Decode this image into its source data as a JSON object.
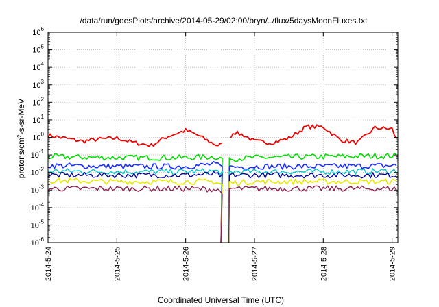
{
  "chart_data": {
    "type": "line",
    "title": "/data/run/goesPlots/archive/2014-05-29/02:00/bryn/../flux/5daysMoonFluxes.txt",
    "xlabel": "Coordinated Universal Time (UTC)",
    "ylabel": {
      "pre": "protons/cm",
      "sup": "2",
      "post": "-s-sr-MeV"
    },
    "scale_y": "log",
    "ylim": [
      1e-06,
      1000000.0
    ],
    "y_ticks": [
      {
        "value": 1e-06,
        "base": "10",
        "exp": "-6"
      },
      {
        "value": 1e-05,
        "base": "10",
        "exp": "-5"
      },
      {
        "value": 0.0001,
        "base": "10",
        "exp": "-4"
      },
      {
        "value": 0.001,
        "base": "10",
        "exp": "-3"
      },
      {
        "value": 0.01,
        "base": "10",
        "exp": "-2"
      },
      {
        "value": 0.1,
        "base": "10",
        "exp": "-1"
      },
      {
        "value": 1,
        "base": "10",
        "exp": "0"
      },
      {
        "value": 10,
        "base": "10",
        "exp": "1"
      },
      {
        "value": 100,
        "base": "10",
        "exp": "2"
      },
      {
        "value": 1000,
        "base": "10",
        "exp": "3"
      },
      {
        "value": 10000,
        "base": "10",
        "exp": "4"
      },
      {
        "value": 100000,
        "base": "10",
        "exp": "5"
      },
      {
        "value": 1000000,
        "base": "10",
        "exp": "6"
      }
    ],
    "x_domain": [
      "2014-05-24T00:00",
      "2014-05-29T02:00"
    ],
    "x_ticks": [
      {
        "at": "2014-05-24T00:00",
        "label": "2014-5-24"
      },
      {
        "at": "2014-05-25T00:00",
        "label": "2014-5-25"
      },
      {
        "at": "2014-05-26T00:00",
        "label": "2014-5-26"
      },
      {
        "at": "2014-05-27T00:00",
        "label": "2014-5-27"
      },
      {
        "at": "2014-05-28T00:00",
        "label": "2014-5-28"
      },
      {
        "at": "2014-05-29T00:00",
        "label": "2014-5-29"
      }
    ],
    "grid": true,
    "gap": {
      "start": "2014-05-26T13:00",
      "end": "2014-05-26T15:00"
    },
    "series": [
      {
        "color": "#ee0000",
        "width": 1.8,
        "points": [
          [
            "2014-05-24T00:00",
            1.3
          ],
          [
            "2014-05-24T06:00",
            0.9
          ],
          [
            "2014-05-24T12:00",
            0.6
          ],
          [
            "2014-05-24T18:00",
            0.8
          ],
          [
            "2014-05-25T00:00",
            0.9
          ],
          [
            "2014-05-25T06:00",
            0.5
          ],
          [
            "2014-05-25T12:00",
            0.35
          ],
          [
            "2014-05-25T18:00",
            1.2
          ],
          [
            "2014-05-26T00:00",
            2.5
          ],
          [
            "2014-05-26T04:00",
            1.4
          ],
          [
            "2014-05-26T08:00",
            0.6
          ],
          [
            "2014-05-26T11:00",
            0.35
          ],
          [
            "2014-05-26T13:00",
            0.4
          ],
          [
            "2014-05-26T15:00",
            0.5
          ],
          [
            "2014-05-26T16:30",
            2.0
          ],
          [
            "2014-05-26T20:00",
            1.4
          ],
          [
            "2014-05-27T00:00",
            0.6
          ],
          [
            "2014-05-27T06:00",
            0.5
          ],
          [
            "2014-05-27T12:00",
            0.9
          ],
          [
            "2014-05-27T18:00",
            4.0
          ],
          [
            "2014-05-28T00:00",
            4.0
          ],
          [
            "2014-05-28T06:00",
            0.7
          ],
          [
            "2014-05-28T12:00",
            0.5
          ],
          [
            "2014-05-28T18:00",
            3.5
          ],
          [
            "2014-05-29T00:00",
            3.0
          ],
          [
            "2014-05-29T02:00",
            0.5
          ]
        ]
      },
      {
        "color": "#00dd00",
        "width": 1.6,
        "points": [
          [
            "2014-05-24T00:00",
            0.08
          ],
          [
            "2014-05-25T00:00",
            0.07
          ],
          [
            "2014-05-26T00:00",
            0.07
          ],
          [
            "2014-05-26T10:00",
            0.08
          ],
          [
            "2014-05-26T13:00",
            0.06
          ],
          [
            "2014-05-26T15:00",
            0.06
          ],
          [
            "2014-05-27T00:00",
            0.07
          ],
          [
            "2014-05-28T00:00",
            0.08
          ],
          [
            "2014-05-29T02:00",
            0.09
          ]
        ]
      },
      {
        "color": "#1a2cff",
        "width": 1.6,
        "points": [
          [
            "2014-05-24T00:00",
            0.025
          ],
          [
            "2014-05-25T00:00",
            0.022
          ],
          [
            "2014-05-26T00:00",
            0.022
          ],
          [
            "2014-05-26T10:00",
            0.03
          ],
          [
            "2014-05-26T13:00",
            0.02
          ],
          [
            "2014-05-26T15:00",
            0.02
          ],
          [
            "2014-05-27T00:00",
            0.022
          ],
          [
            "2014-05-28T00:00",
            0.022
          ],
          [
            "2014-05-29T02:00",
            0.025
          ]
        ]
      },
      {
        "color": "#00c8c8",
        "width": 1.4,
        "points": [
          [
            "2014-05-24T00:00",
            0.012
          ],
          [
            "2014-05-25T00:00",
            0.011
          ],
          [
            "2014-05-26T00:00",
            0.011
          ],
          [
            "2014-05-26T10:00",
            0.012
          ],
          [
            "2014-05-26T13:00",
            0.01
          ],
          [
            "2014-05-26T15:00",
            0.011
          ],
          [
            "2014-05-27T00:00",
            0.011
          ],
          [
            "2014-05-28T00:00",
            0.011
          ],
          [
            "2014-05-29T02:00",
            0.012
          ]
        ]
      },
      {
        "color": "#000099",
        "width": 1.4,
        "points": [
          [
            "2014-05-24T00:00",
            0.007
          ],
          [
            "2014-05-25T00:00",
            0.007
          ],
          [
            "2014-05-26T00:00",
            0.007
          ],
          [
            "2014-05-26T10:00",
            0.008
          ],
          [
            "2014-05-26T13:00",
            0.006
          ],
          [
            "2014-05-26T15:00",
            0.007
          ],
          [
            "2014-05-27T00:00",
            0.007
          ],
          [
            "2014-05-28T00:00",
            0.007
          ],
          [
            "2014-05-29T02:00",
            0.007
          ]
        ]
      },
      {
        "color": "#e8e800",
        "width": 1.6,
        "points": [
          [
            "2014-05-24T00:00",
            0.0035
          ],
          [
            "2014-05-25T00:00",
            0.003
          ],
          [
            "2014-05-26T00:00",
            0.003
          ],
          [
            "2014-05-26T10:00",
            0.003
          ],
          [
            "2014-05-26T13:00",
            0.002
          ],
          [
            "2014-05-26T15:00",
            0.0025
          ],
          [
            "2014-05-27T00:00",
            0.003
          ],
          [
            "2014-05-28T00:00",
            0.003
          ],
          [
            "2014-05-29T02:00",
            0.003
          ]
        ]
      },
      {
        "color": "#8b2252",
        "width": 1.4,
        "points": [
          [
            "2014-05-24T00:00",
            0.0012
          ],
          [
            "2014-05-25T00:00",
            0.0012
          ],
          [
            "2014-05-26T00:00",
            0.0012
          ],
          [
            "2014-05-26T10:00",
            0.0011
          ],
          [
            "2014-05-26T13:00",
            0.0008
          ],
          [
            "2014-05-26T15:00",
            0.0012
          ],
          [
            "2014-05-27T00:00",
            0.0012
          ],
          [
            "2014-05-28T00:00",
            0.0012
          ],
          [
            "2014-05-29T02:00",
            0.0012
          ]
        ]
      }
    ]
  }
}
